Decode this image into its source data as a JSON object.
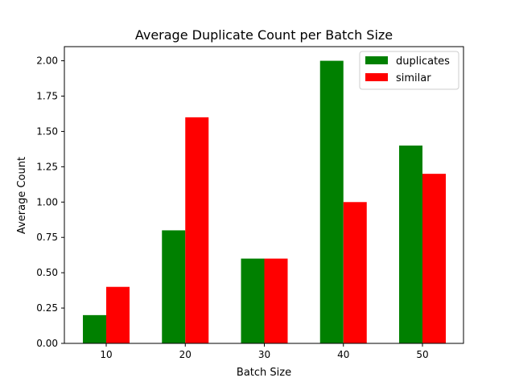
{
  "chart_data": {
    "type": "bar",
    "title": "Average Duplicate Count per Batch Size",
    "xlabel": "Batch Size",
    "ylabel": "Average Count",
    "categories": [
      "10",
      "20",
      "30",
      "40",
      "50"
    ],
    "series": [
      {
        "name": "duplicates",
        "color": "#008000",
        "values": [
          0.2,
          0.8,
          0.6,
          2.0,
          1.4
        ]
      },
      {
        "name": "similar",
        "color": "#ff0000",
        "values": [
          0.4,
          1.6,
          0.6,
          1.0,
          1.2
        ]
      }
    ],
    "ylim": [
      0,
      2.1
    ],
    "yticks": [
      "0.00",
      "0.25",
      "0.50",
      "0.75",
      "1.00",
      "1.25",
      "1.50",
      "1.75",
      "2.00"
    ],
    "grid": false,
    "legend": "top-right"
  }
}
